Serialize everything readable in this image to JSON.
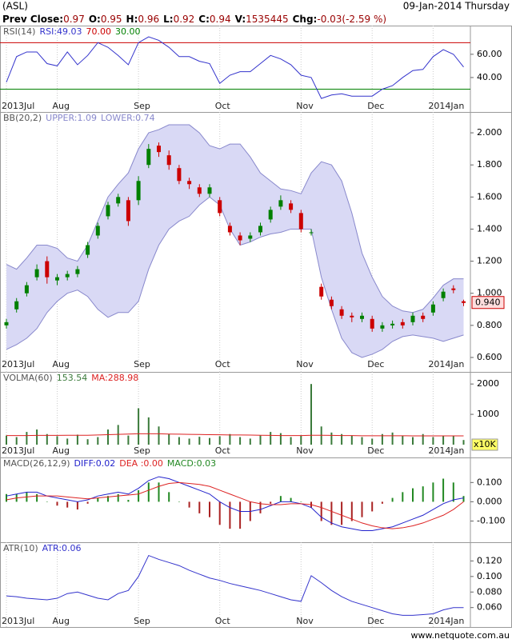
{
  "header": {
    "symbol": "(ASL)",
    "date": "09-Jan-2014 Thursday",
    "quote": [
      {
        "label": "Prev Close:",
        "value": "0.97"
      },
      {
        "label": "O:",
        "value": "0.95"
      },
      {
        "label": "H:",
        "value": "0.96"
      },
      {
        "label": "L:",
        "value": "0.92"
      },
      {
        "label": "C:",
        "value": "0.94"
      },
      {
        "label": "V:",
        "value": "1535445"
      },
      {
        "label": "Chg:",
        "value": "-0.03(-2.59 %)"
      }
    ]
  },
  "footer": "www.netquote.com.au",
  "chart_data": [
    {
      "type": "line",
      "title": "RSI(14)",
      "categories": [
        "2013Jul",
        null,
        null,
        null,
        null,
        "Aug",
        null,
        null,
        null,
        null,
        null,
        null,
        null,
        "Sep",
        null,
        null,
        null,
        null,
        null,
        null,
        null,
        "Oct",
        null,
        null,
        null,
        null,
        null,
        null,
        null,
        "Nov",
        null,
        null,
        null,
        null,
        null,
        null,
        "Dec",
        null,
        null,
        null,
        null,
        null,
        "2014Jan",
        null,
        null,
        null
      ],
      "series": [
        {
          "name": "RSI:49.03",
          "color": "#3333cc",
          "values": [
            36,
            58,
            62,
            62,
            52,
            50,
            62,
            51,
            59,
            70,
            66,
            59,
            51,
            70,
            75,
            72,
            66,
            58,
            58,
            54,
            52,
            35,
            42,
            45,
            45,
            52,
            59,
            56,
            51,
            42,
            40,
            22,
            25,
            26,
            24,
            24,
            24,
            30,
            33,
            40,
            46,
            47,
            58,
            64,
            60,
            49
          ]
        }
      ],
      "levels": [
        {
          "value": 70,
          "label": "70.00",
          "color": "#cc0000"
        },
        {
          "value": 30,
          "label": "30.00",
          "color": "#008000"
        }
      ],
      "ylim": [
        20,
        84
      ],
      "yticks": [
        {
          "value": 40,
          "label": "40.00"
        },
        {
          "value": 60,
          "label": "60.00"
        }
      ]
    },
    {
      "type": "candlestick",
      "title": "BB(20,2)",
      "categories": [
        "2013Jul",
        null,
        null,
        null,
        null,
        "Aug",
        null,
        null,
        null,
        null,
        null,
        null,
        null,
        "Sep",
        null,
        null,
        null,
        null,
        null,
        null,
        null,
        "Oct",
        null,
        null,
        null,
        null,
        null,
        null,
        null,
        "Nov",
        null,
        null,
        null,
        null,
        null,
        null,
        "Dec",
        null,
        null,
        null,
        null,
        null,
        "2014Jan",
        null,
        null,
        null
      ],
      "series": [
        {
          "name": "UPPER:1.09",
          "color": "#8888cc",
          "values": [
            1.18,
            1.15,
            1.22,
            1.3,
            1.3,
            1.28,
            1.22,
            1.2,
            1.3,
            1.45,
            1.6,
            1.68,
            1.75,
            1.9,
            2.0,
            2.02,
            2.05,
            2.05,
            2.05,
            2.0,
            1.92,
            1.9,
            1.93,
            1.93,
            1.85,
            1.75,
            1.7,
            1.65,
            1.64,
            1.62,
            1.75,
            1.82,
            1.8,
            1.7,
            1.5,
            1.25,
            1.1,
            0.98,
            0.92,
            0.89,
            0.88,
            0.9,
            0.97,
            1.05,
            1.09,
            1.09
          ]
        },
        {
          "name": "LOWER:0.74",
          "color": "#8888cc",
          "values": [
            0.65,
            0.68,
            0.72,
            0.78,
            0.88,
            0.95,
            1.0,
            1.02,
            0.98,
            0.9,
            0.85,
            0.88,
            0.88,
            0.95,
            1.15,
            1.3,
            1.4,
            1.45,
            1.48,
            1.55,
            1.6,
            1.55,
            1.4,
            1.3,
            1.32,
            1.35,
            1.37,
            1.38,
            1.4,
            1.4,
            1.4,
            1.1,
            0.9,
            0.72,
            0.63,
            0.6,
            0.62,
            0.65,
            0.7,
            0.73,
            0.74,
            0.73,
            0.72,
            0.7,
            0.72,
            0.74
          ]
        }
      ],
      "band_color": "#d9d9f5",
      "up_color": "#008000",
      "down_color": "#cc0000",
      "open": [
        0.8,
        0.9,
        1.0,
        1.1,
        1.2,
        1.08,
        1.1,
        1.12,
        1.24,
        1.36,
        1.48,
        1.56,
        1.58,
        1.58,
        1.8,
        1.92,
        1.86,
        1.78,
        1.7,
        1.66,
        1.62,
        1.58,
        1.42,
        1.36,
        1.34,
        1.38,
        1.46,
        1.54,
        1.56,
        1.5,
        1.38,
        1.04,
        0.96,
        0.9,
        0.86,
        0.84,
        0.84,
        0.78,
        0.8,
        0.82,
        0.82,
        0.86,
        0.88,
        0.97,
        1.03,
        0.95
      ],
      "high": [
        0.84,
        0.97,
        1.07,
        1.18,
        1.23,
        1.12,
        1.14,
        1.17,
        1.32,
        1.44,
        1.57,
        1.62,
        1.6,
        1.73,
        1.93,
        1.94,
        1.89,
        1.8,
        1.72,
        1.68,
        1.68,
        1.6,
        1.44,
        1.38,
        1.38,
        1.44,
        1.54,
        1.61,
        1.58,
        1.52,
        1.4,
        1.06,
        0.98,
        0.92,
        0.88,
        0.88,
        0.86,
        0.82,
        0.83,
        0.84,
        0.88,
        0.88,
        0.95,
        1.03,
        1.05,
        0.96
      ],
      "low": [
        0.78,
        0.88,
        0.98,
        1.08,
        1.06,
        1.05,
        1.08,
        1.1,
        1.22,
        1.34,
        1.46,
        1.54,
        1.42,
        1.55,
        1.78,
        1.85,
        1.77,
        1.68,
        1.65,
        1.6,
        1.6,
        1.48,
        1.36,
        1.3,
        1.32,
        1.36,
        1.44,
        1.52,
        1.5,
        1.38,
        1.36,
        0.96,
        0.9,
        0.84,
        0.82,
        0.82,
        0.76,
        0.76,
        0.78,
        0.78,
        0.8,
        0.82,
        0.86,
        0.95,
        1.0,
        0.92
      ],
      "close": [
        0.82,
        0.95,
        1.05,
        1.15,
        1.1,
        1.1,
        1.12,
        1.15,
        1.3,
        1.42,
        1.55,
        1.6,
        1.45,
        1.7,
        1.9,
        1.88,
        1.8,
        1.7,
        1.68,
        1.62,
        1.66,
        1.5,
        1.38,
        1.33,
        1.36,
        1.42,
        1.52,
        1.58,
        1.52,
        1.4,
        1.38,
        0.98,
        0.92,
        0.86,
        0.85,
        0.86,
        0.78,
        0.8,
        0.81,
        0.8,
        0.86,
        0.84,
        0.93,
        1.01,
        1.02,
        0.94
      ],
      "last": {
        "value": 0.94,
        "label": "0.940"
      },
      "ylim": [
        0.525,
        2.125
      ],
      "yticks": [
        {
          "value": 0.6,
          "label": "0.600"
        },
        {
          "value": 0.8,
          "label": "0.800"
        },
        {
          "value": 1.0,
          "label": "1.000"
        },
        {
          "value": 1.2,
          "label": "1.200"
        },
        {
          "value": 1.4,
          "label": "1.400"
        },
        {
          "value": 1.6,
          "label": "1.600"
        },
        {
          "value": 1.8,
          "label": "1.800"
        },
        {
          "value": 2.0,
          "label": "2.000"
        }
      ]
    },
    {
      "type": "bar",
      "title": "VOLMA(60)",
      "categories": [
        "2013Jul",
        null,
        null,
        null,
        null,
        "Aug",
        null,
        null,
        null,
        null,
        null,
        null,
        null,
        "Sep",
        null,
        null,
        null,
        null,
        null,
        null,
        null,
        "Oct",
        null,
        null,
        null,
        null,
        null,
        null,
        null,
        "Nov",
        null,
        null,
        null,
        null,
        null,
        null,
        "Dec",
        null,
        null,
        null,
        null,
        null,
        "2014Jan",
        null,
        null,
        null
      ],
      "series": [
        {
          "name": "153.54",
          "kind": "bar",
          "color": "#3a7a3a",
          "values": [
            300,
            250,
            420,
            500,
            350,
            280,
            200,
            330,
            180,
            250,
            500,
            650,
            300,
            1200,
            900,
            600,
            350,
            250,
            200,
            260,
            220,
            280,
            350,
            250,
            200,
            300,
            420,
            380,
            250,
            300,
            2000,
            600,
            400,
            350,
            300,
            250,
            200,
            350,
            400,
            300,
            250,
            350,
            250,
            300,
            280,
            153.54
          ]
        },
        {
          "name": "MA:288.98",
          "kind": "line",
          "color": "#dd2222",
          "values": [
            300,
            300,
            300,
            305,
            305,
            305,
            310,
            310,
            310,
            320,
            330,
            340,
            350,
            360,
            360,
            360,
            350,
            345,
            340,
            335,
            330,
            325,
            320,
            320,
            315,
            310,
            305,
            300,
            300,
            300,
            310,
            310,
            305,
            300,
            300,
            295,
            295,
            295,
            295,
            295,
            290,
            290,
            290,
            290,
            289,
            288.98
          ]
        }
      ],
      "unit": "x10K",
      "ylim": [
        0,
        2400
      ],
      "yticks": [
        1000,
        2000
      ]
    },
    {
      "type": "bar",
      "title": "MACD(26,12,9)",
      "series": [
        {
          "name": "DIFF:0.02",
          "kind": "line",
          "color": "#2222cc",
          "values": [
            0.03,
            0.04,
            0.05,
            0.05,
            0.03,
            0.02,
            0.01,
            0.0,
            0.01,
            0.03,
            0.04,
            0.05,
            0.04,
            0.07,
            0.11,
            0.13,
            0.12,
            0.1,
            0.08,
            0.06,
            0.04,
            0.0,
            -0.03,
            -0.05,
            -0.05,
            -0.04,
            -0.02,
            0.0,
            0.0,
            -0.01,
            -0.03,
            -0.08,
            -0.11,
            -0.13,
            -0.14,
            -0.15,
            -0.15,
            -0.14,
            -0.13,
            -0.11,
            -0.09,
            -0.07,
            -0.04,
            -0.01,
            0.01,
            0.02
          ]
        },
        {
          "name": "DEA :0.00",
          "kind": "line",
          "color": "#dd2222",
          "values": [
            0.01,
            0.02,
            0.025,
            0.03,
            0.03,
            0.03,
            0.025,
            0.02,
            0.015,
            0.02,
            0.025,
            0.03,
            0.035,
            0.04,
            0.06,
            0.08,
            0.095,
            0.1,
            0.095,
            0.09,
            0.08,
            0.06,
            0.04,
            0.02,
            0.0,
            -0.01,
            -0.015,
            -0.015,
            -0.01,
            -0.01,
            -0.015,
            -0.03,
            -0.05,
            -0.07,
            -0.09,
            -0.11,
            -0.125,
            -0.135,
            -0.14,
            -0.135,
            -0.125,
            -0.11,
            -0.09,
            -0.07,
            -0.04,
            0.0
          ]
        },
        {
          "name": "MACD:0.03",
          "kind": "bar",
          "color": "#228822",
          "negative_color": "#aa2222",
          "values": [
            0.04,
            0.04,
            0.05,
            0.04,
            0,
            -0.02,
            -0.03,
            -0.04,
            -0.01,
            0.02,
            0.03,
            0.04,
            0.01,
            0.06,
            0.1,
            0.1,
            0.05,
            0,
            -0.03,
            -0.06,
            -0.08,
            -0.12,
            -0.14,
            -0.14,
            -0.1,
            -0.06,
            -0.01,
            0.03,
            0.02,
            0,
            -0.03,
            -0.1,
            -0.12,
            -0.12,
            -0.1,
            -0.08,
            -0.05,
            -0.01,
            0.02,
            0.05,
            0.07,
            0.08,
            0.1,
            0.12,
            0.1,
            0.03
          ]
        }
      ],
      "ylim": [
        -0.21,
        0.23
      ],
      "yticks": [
        {
          "value": -0.1,
          "label": "-0.100"
        },
        {
          "value": 0,
          "label": "0.000"
        },
        {
          "value": 0.1,
          "label": "0.100"
        }
      ]
    },
    {
      "type": "line",
      "title": "ATR(10)",
      "categories": [
        "2013Jul",
        null,
        null,
        null,
        null,
        "Aug",
        null,
        null,
        null,
        null,
        null,
        null,
        null,
        "Sep",
        null,
        null,
        null,
        null,
        null,
        null,
        null,
        "Oct",
        null,
        null,
        null,
        null,
        null,
        null,
        null,
        "Nov",
        null,
        null,
        null,
        null,
        null,
        null,
        "Dec",
        null,
        null,
        null,
        null,
        null,
        "2014Jan",
        null,
        null,
        null
      ],
      "series": [
        {
          "name": "ATR:0.06",
          "color": "#3333cc",
          "values": [
            0.075,
            0.074,
            0.072,
            0.071,
            0.07,
            0.072,
            0.078,
            0.08,
            0.076,
            0.072,
            0.07,
            0.078,
            0.082,
            0.1,
            0.127,
            0.122,
            0.118,
            0.114,
            0.108,
            0.103,
            0.098,
            0.095,
            0.091,
            0.088,
            0.085,
            0.082,
            0.078,
            0.074,
            0.07,
            0.068,
            0.101,
            0.092,
            0.082,
            0.074,
            0.068,
            0.064,
            0.06,
            0.056,
            0.052,
            0.05,
            0.05,
            0.051,
            0.052,
            0.057,
            0.06,
            0.06
          ]
        }
      ],
      "ylim": [
        0.035,
        0.142
      ],
      "yticks": [
        {
          "value": 0.06,
          "label": "0.060"
        },
        {
          "value": 0.08,
          "label": "0.080"
        },
        {
          "value": 0.1,
          "label": "0.100"
        },
        {
          "value": 0.12,
          "label": "0.120"
        }
      ]
    }
  ]
}
